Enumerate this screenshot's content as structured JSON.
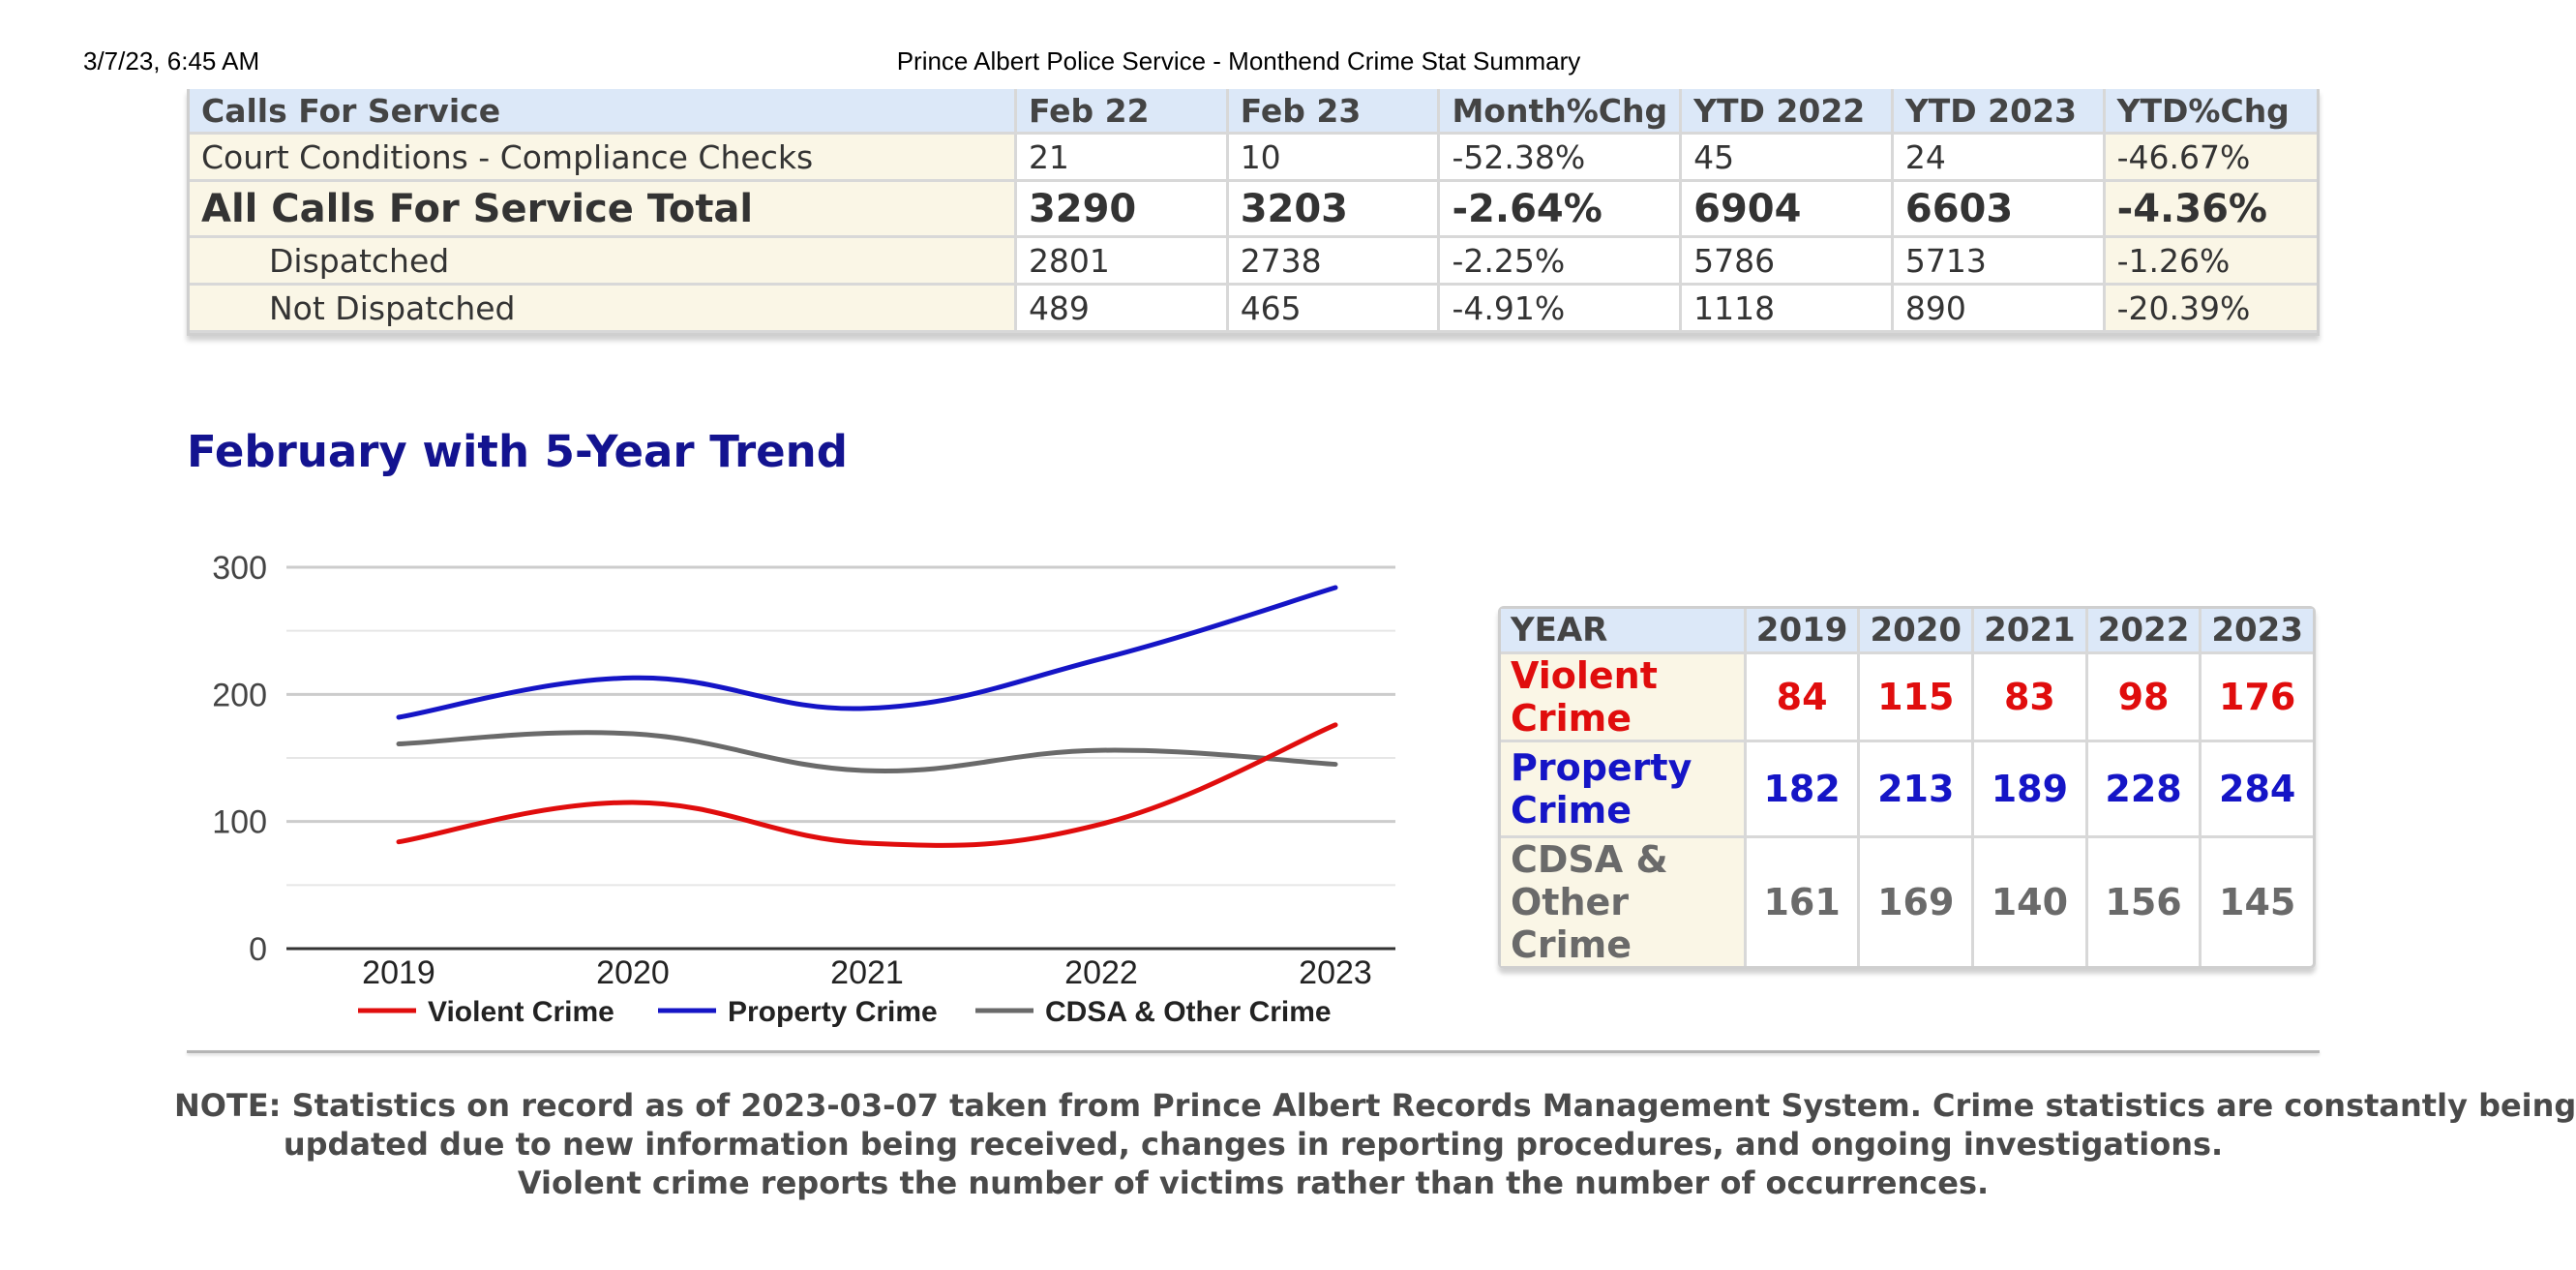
{
  "header": {
    "timestamp": "3/7/23, 6:45 AM",
    "title": "Prince Albert Police Service - Monthend Crime Stat Summary"
  },
  "calls_table": {
    "columns": [
      "Calls For Service",
      "Feb 22",
      "Feb 23",
      "Month%Chg",
      "YTD 2022",
      "YTD 2023",
      "YTD%Chg"
    ],
    "rows": [
      [
        "Court Conditions - Compliance Checks",
        "21",
        "10",
        "-52.38%",
        "45",
        "24",
        "-46.67%"
      ],
      [
        "All Calls For Service Total",
        "3290",
        "3203",
        "-2.64%",
        "6904",
        "6603",
        "-4.36%"
      ],
      [
        "Dispatched",
        "2801",
        "2738",
        "-2.25%",
        "5786",
        "5713",
        "-1.26%"
      ],
      [
        "Not Dispatched",
        "489",
        "465",
        "-4.91%",
        "1118",
        "890",
        "-20.39%"
      ]
    ]
  },
  "trend_title": "February with 5-Year Trend",
  "chart_data": {
    "type": "line",
    "x": [
      "2019",
      "2020",
      "2021",
      "2022",
      "2023"
    ],
    "series": [
      {
        "name": "Violent Crime",
        "values": [
          84,
          115,
          83,
          98,
          176
        ],
        "color": "#e00d0d"
      },
      {
        "name": "Property Crime",
        "values": [
          182,
          213,
          189,
          228,
          284
        ],
        "color": "#1515c6"
      },
      {
        "name": "CDSA & Other Crime",
        "values": [
          161,
          169,
          140,
          156,
          145
        ],
        "color": "#6a6a6a"
      }
    ],
    "y_ticks": [
      "0",
      "100",
      "200",
      "300"
    ],
    "ylim": [
      0,
      300
    ],
    "grid": true,
    "legend": "bottom"
  },
  "trend_table": {
    "columns": [
      "YEAR",
      "2019",
      "2020",
      "2021",
      "2022",
      "2023"
    ],
    "rows": [
      {
        "label": "Violent Crime",
        "values": [
          "84",
          "115",
          "83",
          "98",
          "176"
        ]
      },
      {
        "label": "Property Crime",
        "values": [
          "182",
          "213",
          "189",
          "228",
          "284"
        ]
      },
      {
        "label": "CDSA & Other Crime",
        "values": [
          "161",
          "169",
          "140",
          "156",
          "145"
        ]
      }
    ]
  },
  "note": {
    "line1": "NOTE: Statistics on record as of 2023-03-07 taken from Prince Albert Records Management System. Crime statistics are constantly being",
    "line2": "updated due to new information being received, changes in reporting procedures, and ongoing investigations.",
    "line3": "Violent crime reports the number of victims rather than the number of occurrences."
  }
}
